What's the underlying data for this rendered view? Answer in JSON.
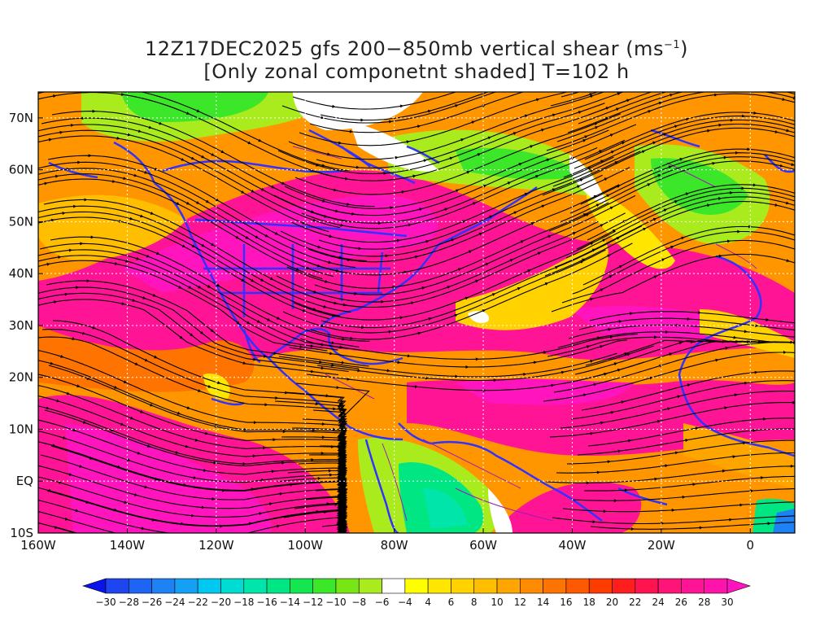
{
  "title": {
    "line1_prefix": "12Z17DEC2025 gfs 200−850mb vertical shear (ms",
    "line1_sup": "−1",
    "line1_suffix": ")",
    "line2": "[Only zonal componetnt shaded] T=102 h"
  },
  "map": {
    "region": "Eastern Pacific / North America / Atlantic",
    "lon_range": [
      -160,
      10
    ],
    "lat_range": [
      -10,
      75
    ],
    "gridlines": "dotted",
    "lat_labels": [
      "70N",
      "60N",
      "50N",
      "40N",
      "30N",
      "20N",
      "10N",
      "EQ",
      "10S"
    ],
    "lon_labels": [
      "160W",
      "140W",
      "120W",
      "100W",
      "80W",
      "60W",
      "40W",
      "20W",
      "0"
    ],
    "overlays": [
      "coastlines and borders (blue)",
      "streamlines (black)",
      "topography contours (purple)"
    ]
  },
  "colorbar": {
    "labels": [
      "−30",
      "−28",
      "−26",
      "−24",
      "−22",
      "−20",
      "−18",
      "−16",
      "−14",
      "−12",
      "−10",
      "−8",
      "−6",
      "−4",
      "4",
      "6",
      "8",
      "10",
      "12",
      "14",
      "16",
      "18",
      "20",
      "22",
      "24",
      "26",
      "28",
      "30"
    ],
    "colors": [
      "#0a14e8",
      "#1e46f0",
      "#1e64f5",
      "#1e82f5",
      "#14a0f5",
      "#00c8f0",
      "#00dcd2",
      "#00e6aa",
      "#00e682",
      "#14e650",
      "#3ce628",
      "#78e614",
      "#aaeb1e",
      "#ffffff",
      "#ffff00",
      "#ffe600",
      "#ffd200",
      "#ffbe00",
      "#ffa500",
      "#ff8c00",
      "#ff7300",
      "#ff5a00",
      "#ff3c00",
      "#ff1e1e",
      "#ff1450",
      "#ff1478",
      "#ff1496",
      "#ff14aa",
      "#ff14be"
    ]
  }
}
